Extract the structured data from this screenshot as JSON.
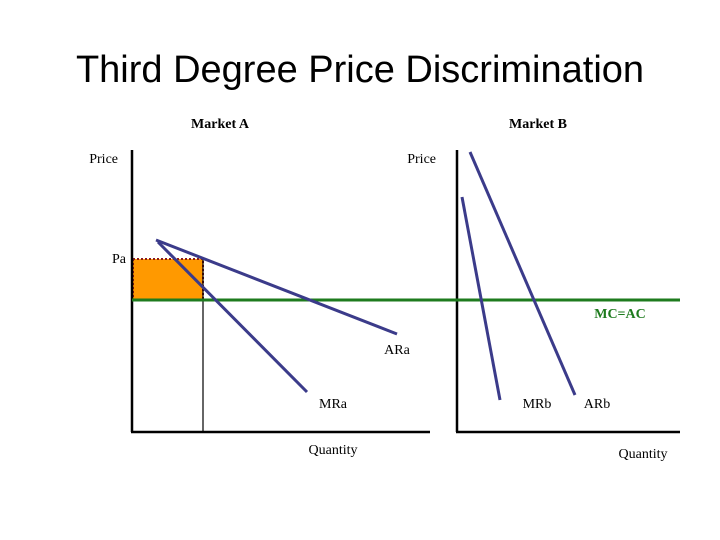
{
  "title": "Third Degree Price Discrimination",
  "panels": [
    {
      "name": "Market A",
      "y_axis": "Price",
      "x_axis": "Quantity",
      "price_label": "Pa",
      "curves": [
        "ARa",
        "MRa"
      ]
    },
    {
      "name": "Market B",
      "y_axis": "Price",
      "x_axis": "Quantity",
      "curves": [
        "MRb",
        "ARb"
      ]
    }
  ],
  "cost_label": "MC=AC"
}
